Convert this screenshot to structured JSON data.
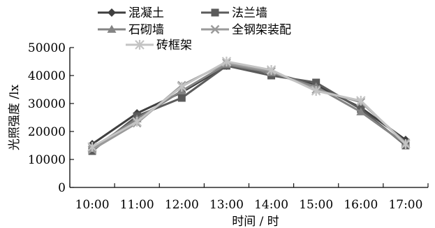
{
  "chart_data": {
    "type": "line",
    "title": "",
    "xlabel": "时间 / 时",
    "ylabel": "光照强度 /lx",
    "categories": [
      "10:00",
      "11:00",
      "12:00",
      "13:00",
      "14:00",
      "15:00",
      "16:00",
      "17:00"
    ],
    "ylim": [
      0,
      50000
    ],
    "yticks": [
      "0",
      "10000",
      "20000",
      "30000",
      "40000",
      "50000"
    ],
    "grid": false,
    "legend_position": "top",
    "series": [
      {
        "name": "混凝土",
        "marker": "diamond",
        "color": "#3f3f3f",
        "values": [
          15500,
          26500,
          34000,
          43500,
          41000,
          36500,
          28500,
          17000
        ]
      },
      {
        "name": "法兰墙",
        "marker": "square",
        "color": "#5b5b5b",
        "values": [
          13000,
          25500,
          32000,
          43500,
          40000,
          37500,
          28000,
          15000
        ]
      },
      {
        "name": "石砌墙",
        "marker": "triangle",
        "color": "#848484",
        "values": [
          14000,
          24500,
          34500,
          44000,
          41000,
          36000,
          27000,
          15500
        ]
      },
      {
        "name": "全钢架装配",
        "marker": "x",
        "color": "#9a9a9a",
        "values": [
          13500,
          23000,
          36500,
          44500,
          41500,
          35000,
          30500,
          16000
        ]
      },
      {
        "name": "砖框架",
        "marker": "star",
        "color": "#c4c4c4",
        "values": [
          14500,
          23500,
          36000,
          45000,
          42000,
          34500,
          31000,
          15500
        ]
      }
    ]
  }
}
